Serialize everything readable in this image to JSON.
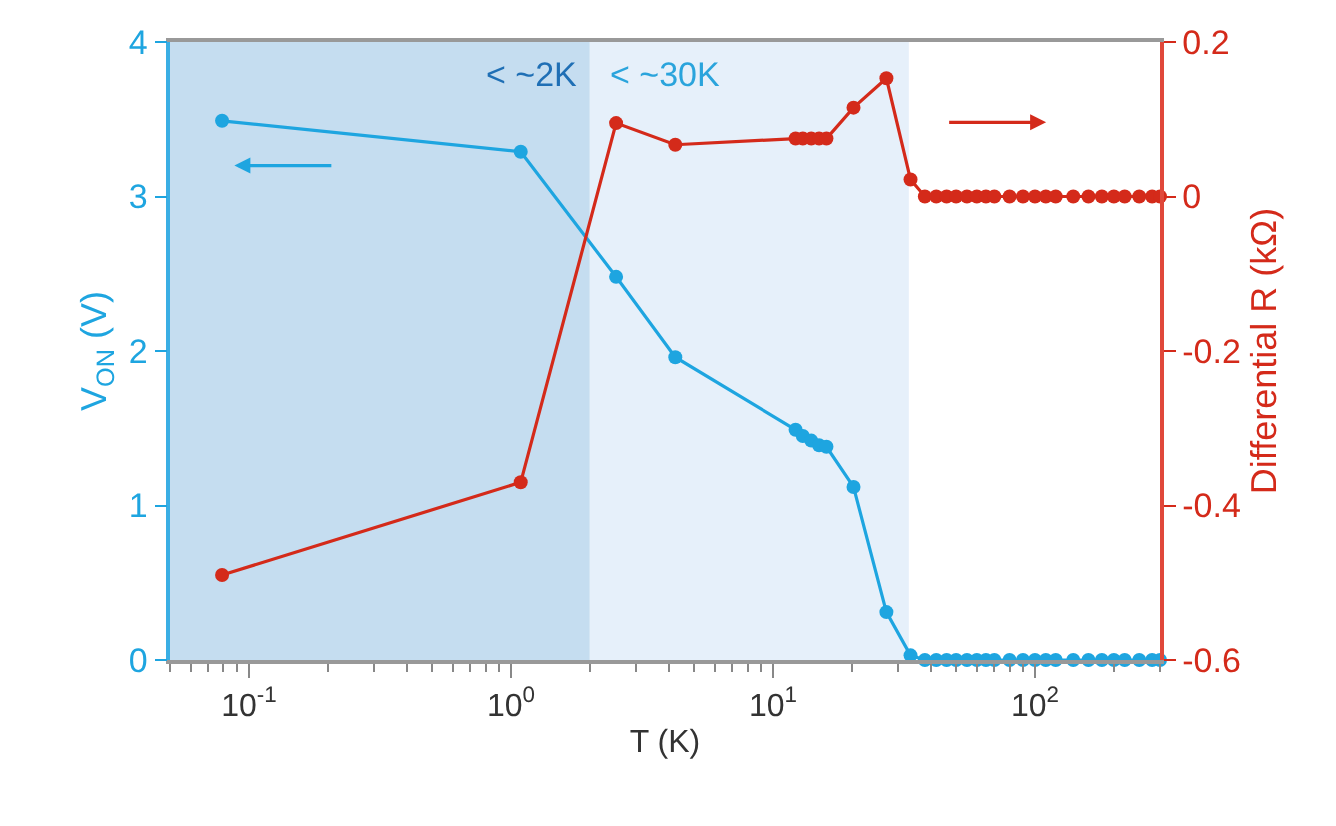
{
  "chart_data": {
    "type": "line",
    "xlabel": "T (K)",
    "ylabel": "V$_{ON}$ (V)",
    "y2label": "Differential R (kΩ)",
    "log": "x",
    "grid": false,
    "marker": "circle",
    "line_style": "solid",
    "xlim": [
      0.05,
      300
    ],
    "xticks": [
      {
        "value": 0.1,
        "label": "10$^{-1}$"
      },
      {
        "value": 1,
        "label": "10$^{0}$"
      },
      {
        "value": 10,
        "label": "10$^{1}$"
      },
      {
        "value": 100,
        "label": "10$^{2}$"
      }
    ],
    "ylim": [
      0,
      4
    ],
    "yticks": [
      0,
      1,
      2,
      3,
      4
    ],
    "y2lim": [
      -0.6,
      0.2
    ],
    "y2ticks": [
      -0.6,
      -0.4,
      -0.2,
      0,
      0.2
    ],
    "bands": [
      {
        "axis": "x",
        "from": 0.05,
        "to": 2,
        "label": "< ~2K",
        "color": "#c5ddf0"
      },
      {
        "axis": "x",
        "from": 2,
        "to": 33,
        "label": "< ~30K",
        "color": "#e6f0fa"
      }
    ],
    "series": [
      {
        "color": "#1ea5e0",
        "x": [
          0.079,
          1.09,
          2.52,
          4.24,
          12.2,
          13.0,
          14.0,
          15.0,
          16.0,
          20.3,
          27.1,
          33.5,
          38,
          42,
          46,
          50,
          55,
          60,
          65,
          70,
          80,
          90,
          100,
          110,
          120,
          140,
          160,
          180,
          200,
          220,
          250,
          280,
          300
        ],
        "values": [
          3.49,
          3.29,
          2.48,
          1.96,
          1.49,
          1.45,
          1.42,
          1.39,
          1.38,
          1.12,
          0.31,
          0.03,
          0,
          0,
          0,
          0,
          0,
          0,
          0,
          0,
          0,
          0,
          0,
          0,
          0,
          0,
          0,
          0,
          0,
          0,
          0,
          0,
          0
        ]
      },
      {
        "color": "#d42a1a",
        "axis": "y2",
        "x": [
          0.079,
          1.09,
          2.52,
          4.24,
          12.2,
          13.0,
          14.0,
          15.0,
          16.0,
          20.3,
          27.1,
          33.5,
          38,
          42,
          46,
          50,
          55,
          60,
          65,
          70,
          80,
          90,
          100,
          110,
          120,
          140,
          160,
          180,
          200,
          220,
          250,
          280,
          300
        ],
        "values": [
          -0.49,
          -0.37,
          0.095,
          0.067,
          0.075,
          0.075,
          0.075,
          0.075,
          0.075,
          0.115,
          0.153,
          0.022,
          0,
          0,
          0,
          0,
          0,
          0,
          0,
          0,
          0,
          0,
          0,
          0,
          0,
          0,
          0,
          0,
          0,
          0,
          0,
          0,
          0
        ]
      }
    ]
  }
}
